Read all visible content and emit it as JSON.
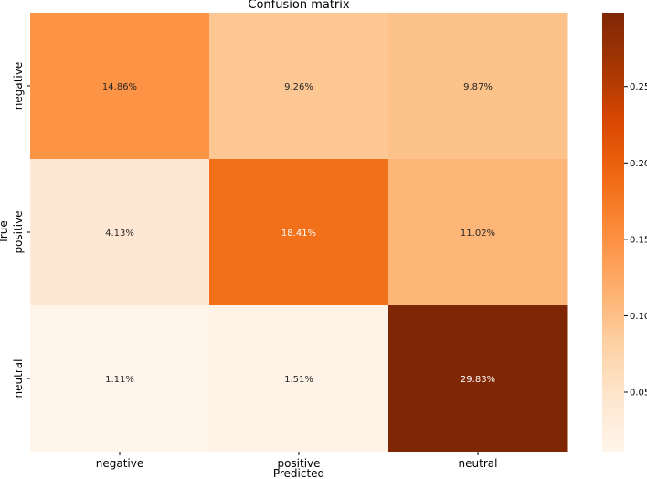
{
  "chart_data": {
    "type": "heatmap",
    "title": "Confusion matrix",
    "xlabel": "Predicted",
    "ylabel": "True",
    "x_categories": [
      "negative",
      "positive",
      "neutral"
    ],
    "y_categories": [
      "negative",
      "positive",
      "neutral"
    ],
    "values": [
      [
        0.1486,
        0.0926,
        0.0987
      ],
      [
        0.0413,
        0.1841,
        0.1102
      ],
      [
        0.0111,
        0.0151,
        0.2983
      ]
    ],
    "cell_labels": [
      [
        "14.86%",
        "9.26%",
        "9.87%"
      ],
      [
        "4.13%",
        "18.41%",
        "11.02%"
      ],
      [
        "1.11%",
        "1.51%",
        "29.83%"
      ]
    ],
    "colormap": "Oranges",
    "colorbar": {
      "range": [
        0.0111,
        0.2983
      ],
      "ticks": [
        0.05,
        0.1,
        0.15,
        0.2,
        0.25
      ],
      "tick_labels": [
        "0.05",
        "0.10",
        "0.15",
        "0.20",
        "0.25"
      ]
    },
    "colors": {
      "low": "#fff5eb",
      "high": "#7f2704"
    },
    "grid": false
  }
}
